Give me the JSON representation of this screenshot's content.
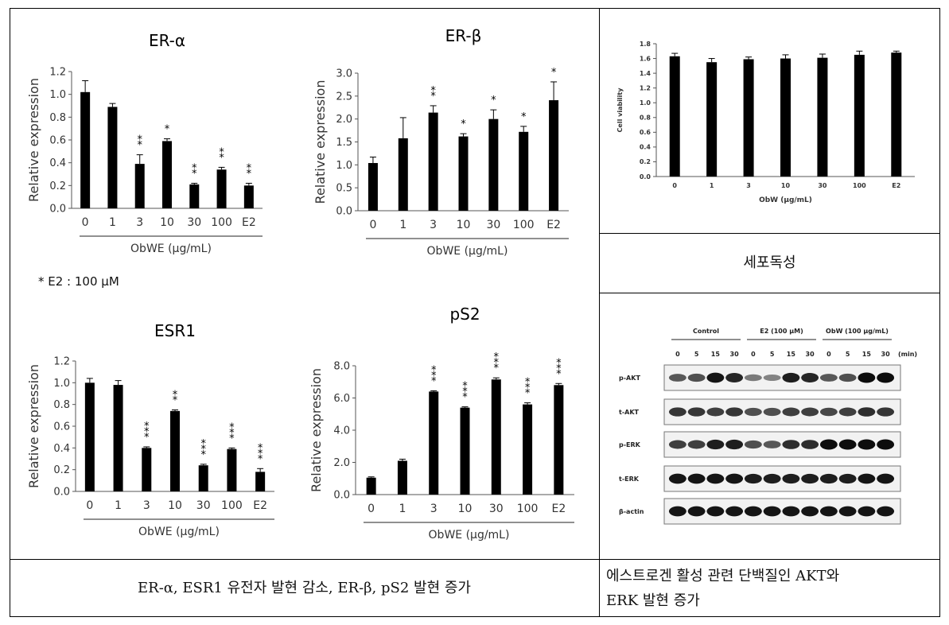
{
  "chart_data": [
    {
      "type": "bar",
      "title": "ER-α",
      "xlabel": "ObWE (μg/mL)",
      "ylabel": "Relative expression",
      "categories": [
        "0",
        "1",
        "3",
        "10",
        "30",
        "100",
        "E2"
      ],
      "values": [
        1.02,
        0.89,
        0.39,
        0.59,
        0.21,
        0.34,
        0.2
      ],
      "errors": [
        0.1,
        0.03,
        0.08,
        0.02,
        0.01,
        0.02,
        0.02
      ],
      "significance": [
        "",
        "",
        "**",
        "*",
        "**",
        "**",
        "**"
      ],
      "ylim": [
        0,
        1.2
      ],
      "yticks": [
        "0.0",
        "0.2",
        "0.4",
        "0.6",
        "0.8",
        "1.0",
        "1.2"
      ]
    },
    {
      "type": "bar",
      "title": "ER-β",
      "xlabel": "ObWE (μg/mL)",
      "ylabel": "Relative expression",
      "categories": [
        "0",
        "1",
        "3",
        "10",
        "30",
        "100",
        "E2"
      ],
      "values": [
        1.04,
        1.58,
        2.14,
        1.62,
        2.0,
        1.72,
        2.41
      ],
      "errors": [
        0.13,
        0.45,
        0.15,
        0.06,
        0.2,
        0.12,
        0.4
      ],
      "significance": [
        "",
        "",
        "**",
        "*",
        "*",
        "*",
        "*"
      ],
      "ylim": [
        0,
        3.0
      ],
      "yticks": [
        "0.0",
        "0.5",
        "1.0",
        "1.5",
        "2.0",
        "2.5",
        "3.0"
      ]
    },
    {
      "type": "bar",
      "title": "ESR1",
      "xlabel": "ObWE (μg/mL)",
      "ylabel": "Relative expression",
      "categories": [
        "0",
        "1",
        "3",
        "10",
        "30",
        "100",
        "E2"
      ],
      "values": [
        1.0,
        0.98,
        0.4,
        0.74,
        0.24,
        0.39,
        0.18
      ],
      "errors": [
        0.04,
        0.04,
        0.01,
        0.01,
        0.01,
        0.01,
        0.03
      ],
      "significance": [
        "",
        "",
        "***",
        "**",
        "***",
        "***",
        "***"
      ],
      "ylim": [
        0,
        1.2
      ],
      "yticks": [
        "0.0",
        "0.2",
        "0.4",
        "0.6",
        "0.8",
        "1.0",
        "1.2"
      ]
    },
    {
      "type": "bar",
      "title": "pS2",
      "xlabel": "ObWE (μg/mL)",
      "ylabel": "Relative expression",
      "categories": [
        "0",
        "1",
        "3",
        "10",
        "30",
        "100",
        "E2"
      ],
      "values": [
        1.05,
        2.1,
        6.4,
        5.4,
        7.15,
        5.6,
        6.8
      ],
      "errors": [
        0.05,
        0.1,
        0.05,
        0.05,
        0.1,
        0.1,
        0.1
      ],
      "significance": [
        "",
        "",
        "***",
        "***",
        "***",
        "***",
        "***"
      ],
      "ylim": [
        0,
        8.0
      ],
      "yticks": [
        "0.0",
        "2.0",
        "4.0",
        "6.0",
        "8.0"
      ]
    },
    {
      "type": "bar",
      "title": "",
      "xlabel": "ObW (μg/mL)",
      "ylabel": "Cell viability",
      "categories": [
        "0",
        "1",
        "3",
        "10",
        "30",
        "100",
        "E2"
      ],
      "values": [
        1.63,
        1.55,
        1.59,
        1.6,
        1.61,
        1.65,
        1.68
      ],
      "errors": [
        0.04,
        0.05,
        0.03,
        0.05,
        0.05,
        0.05,
        0.02
      ],
      "significance": [
        "",
        "",
        "",
        "",
        "",
        "",
        ""
      ],
      "ylim": [
        0,
        1.8
      ],
      "yticks": [
        "0.0",
        "0.2",
        "0.4",
        "0.6",
        "0.8",
        "1.0",
        "1.2",
        "1.4",
        "1.6",
        "1.8"
      ]
    }
  ],
  "footnote": "* E2 : 100 μM",
  "captions": {
    "cytotoxicity": "세포독성",
    "left_result": "ER-α, ESR1 유전자 발현 감소, ER-β, pS2 발현 증가",
    "right_result_line1": "에스트로겐 활성 관련 단백질인 AKT와",
    "right_result_line2": "ERK 발현 증가"
  },
  "blot": {
    "groups": [
      "Control",
      "E2 (100 μM)",
      "ObW (100 μg/mL)"
    ],
    "times": [
      "0",
      "5",
      "15",
      "30",
      "0",
      "5",
      "15",
      "30",
      "0",
      "5",
      "15",
      "30"
    ],
    "time_unit": "(min)",
    "rows": [
      {
        "label": "p-AKT",
        "intensity": [
          0.55,
          0.6,
          0.95,
          0.85,
          0.35,
          0.3,
          0.9,
          0.85,
          0.55,
          0.6,
          1.0,
          1.0
        ]
      },
      {
        "label": "t-AKT",
        "intensity": [
          0.75,
          0.75,
          0.7,
          0.75,
          0.6,
          0.6,
          0.7,
          0.7,
          0.65,
          0.7,
          0.8,
          0.75
        ]
      },
      {
        "label": "p-ERK",
        "intensity": [
          0.7,
          0.7,
          0.9,
          0.9,
          0.6,
          0.55,
          0.8,
          0.8,
          1.0,
          1.0,
          1.0,
          1.0
        ]
      },
      {
        "label": "t-ERK",
        "intensity": [
          0.95,
          0.95,
          0.95,
          0.95,
          0.9,
          0.9,
          0.9,
          0.9,
          0.9,
          0.9,
          0.95,
          0.95
        ]
      },
      {
        "label": "β-actin",
        "intensity": [
          0.95,
          0.95,
          0.95,
          0.95,
          0.95,
          0.95,
          0.95,
          0.95,
          0.95,
          0.95,
          0.95,
          0.95
        ]
      }
    ]
  }
}
